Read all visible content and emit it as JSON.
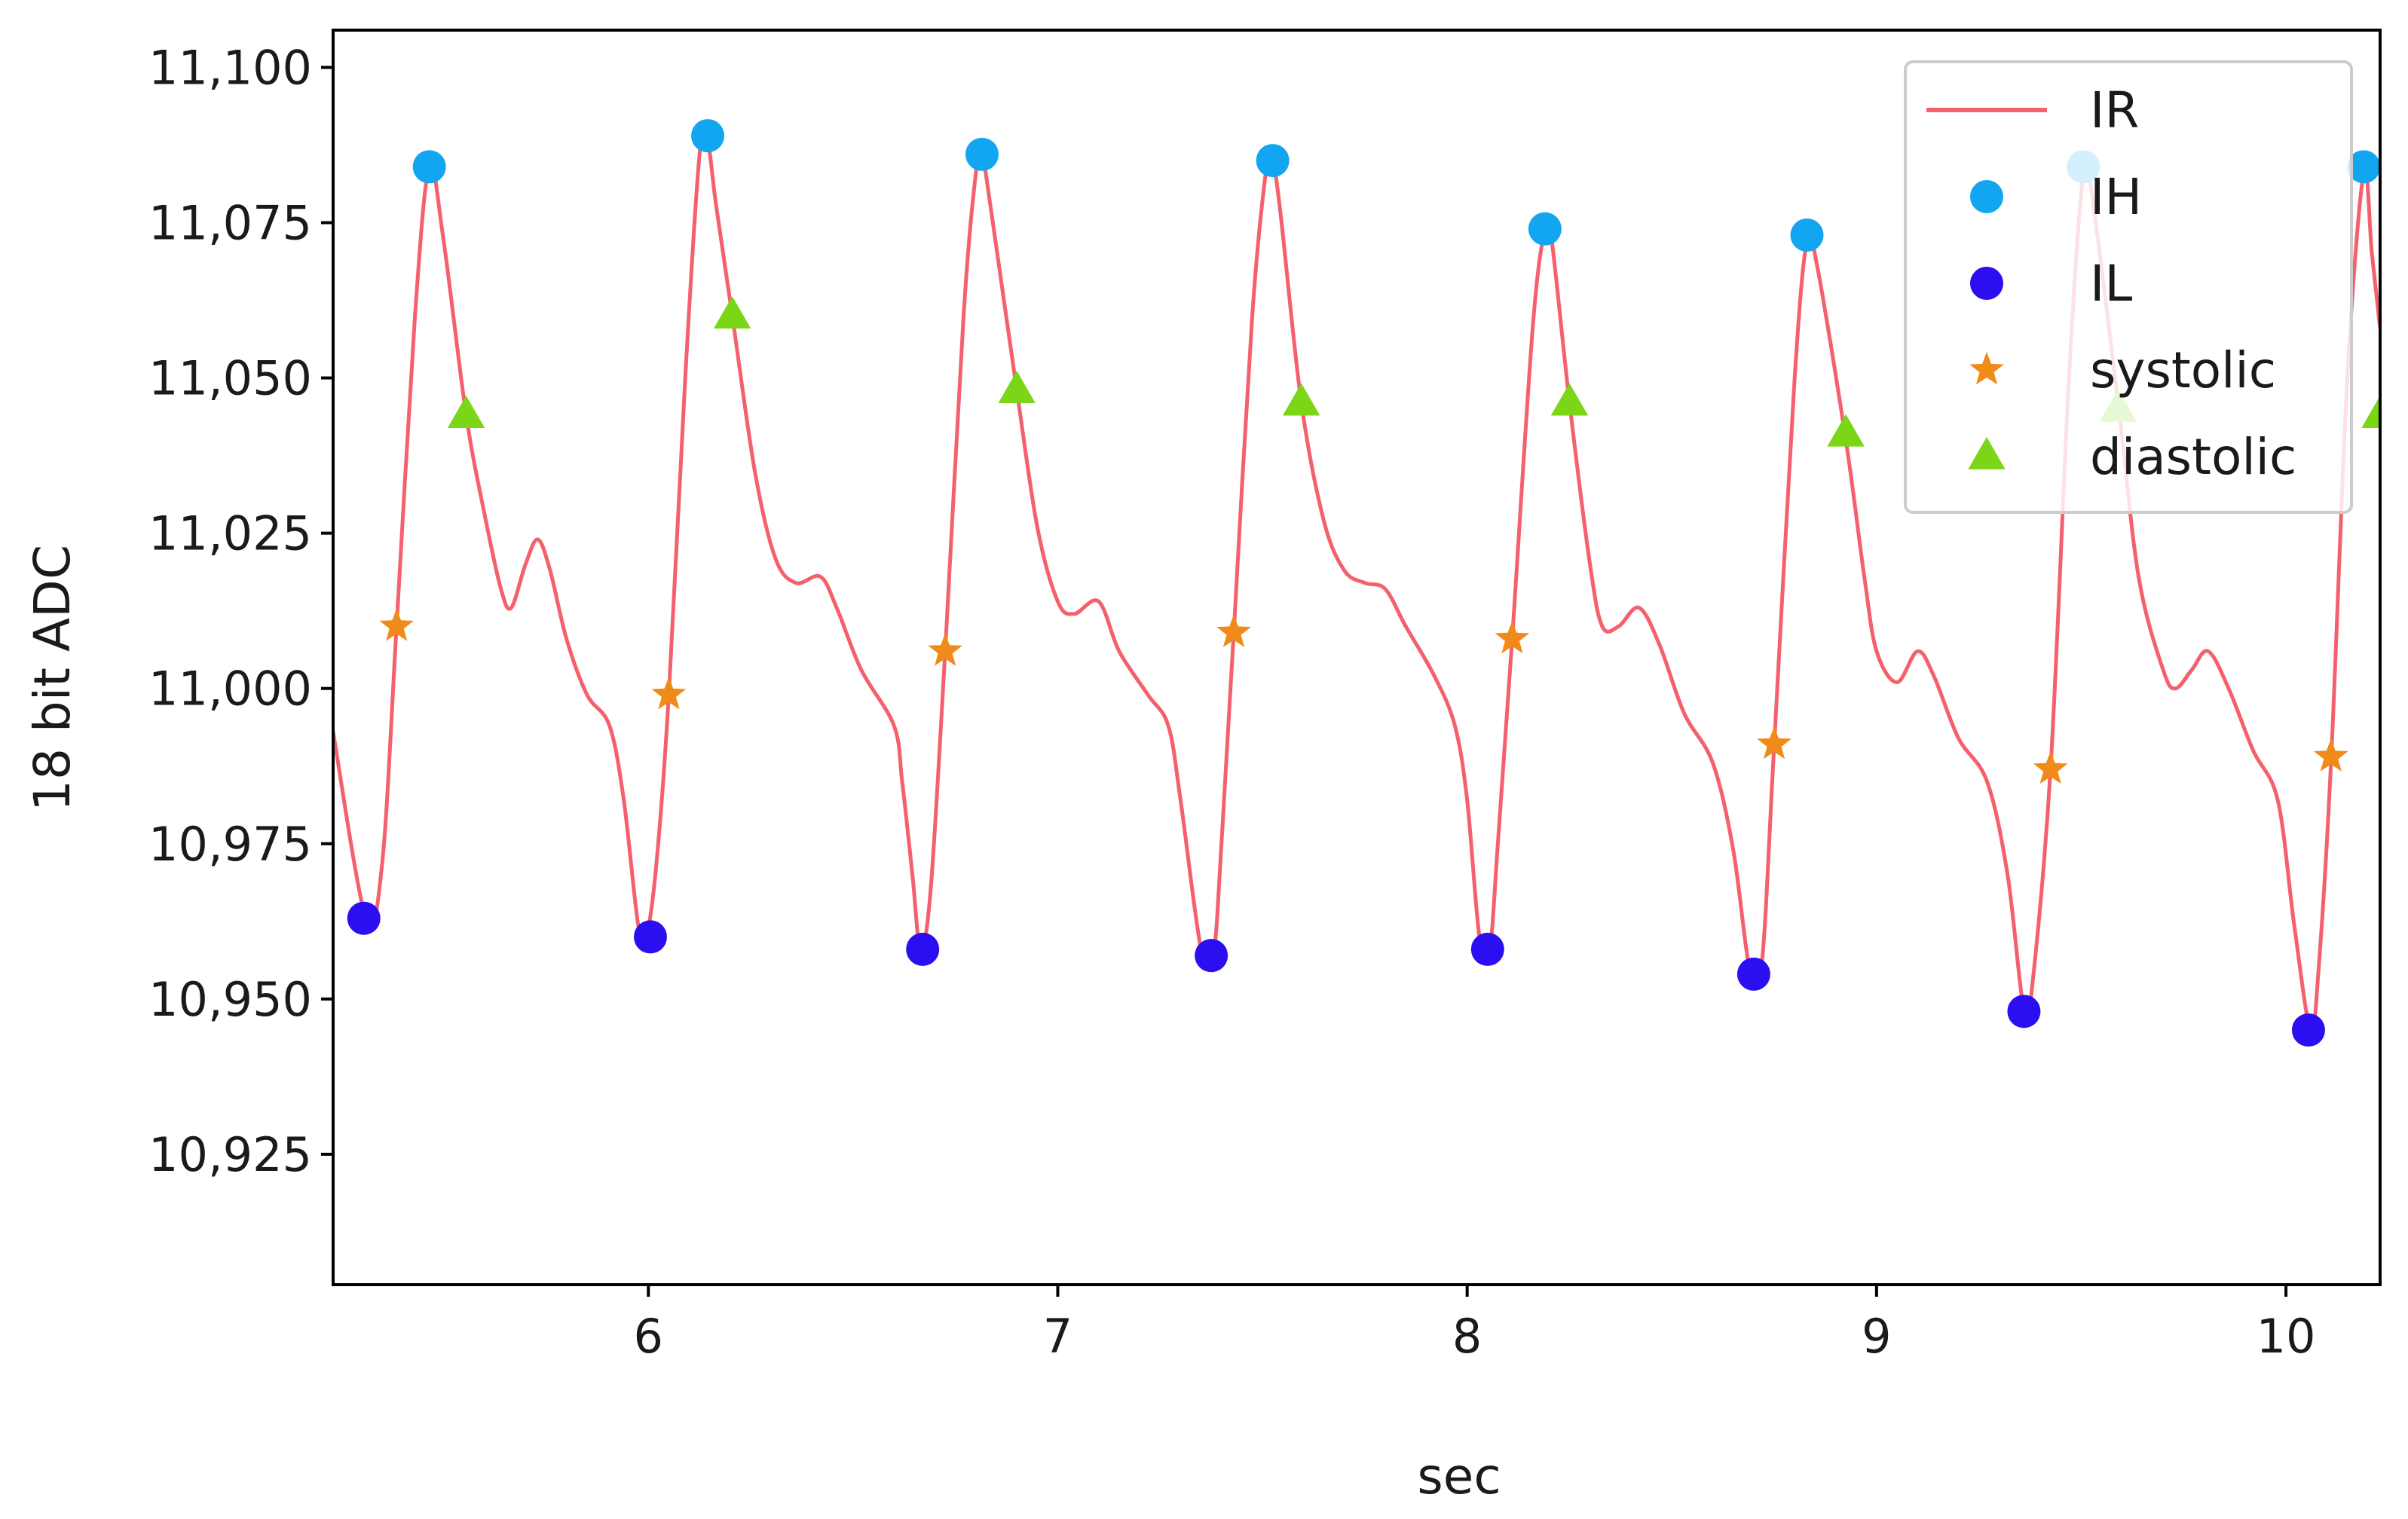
{
  "chart_data": {
    "type": "line",
    "title": "",
    "xlabel": "sec",
    "ylabel": "18 bit ADC",
    "xlim": [
      5.23,
      10.23
    ],
    "ylim": [
      10904,
      11106
    ],
    "grid": false,
    "legend_position": "top-right",
    "x_ticks": [
      6,
      7,
      8,
      9,
      10
    ],
    "x_tick_labels": [
      "6",
      "7",
      "8",
      "9",
      "10"
    ],
    "y_ticks": [
      10925,
      10950,
      10975,
      11000,
      11025,
      11050,
      11075,
      11100
    ],
    "y_tick_labels": [
      "10,925",
      "10,950",
      "10,975",
      "11,000",
      "11,025",
      "11,050",
      "11,075",
      "11,100"
    ],
    "colors": {
      "IR": "#f4606c",
      "IH": "#13a6f0",
      "IL": "#2b0ff0",
      "systolic": "#f08a18",
      "diastolic": "#7ad616"
    },
    "series": [
      {
        "name": "IR",
        "kind": "line",
        "points": [
          [
            5.23,
            10993
          ],
          [
            5.31,
            10963
          ],
          [
            5.35,
            10972
          ],
          [
            5.385,
            11010
          ],
          [
            5.43,
            11060
          ],
          [
            5.465,
            11084
          ],
          [
            5.5,
            11072
          ],
          [
            5.555,
            11044
          ],
          [
            5.6,
            11028
          ],
          [
            5.64,
            11016
          ],
          [
            5.665,
            11013
          ],
          [
            5.7,
            11020
          ],
          [
            5.73,
            11024
          ],
          [
            5.76,
            11019
          ],
          [
            5.8,
            11008
          ],
          [
            5.85,
            10999
          ],
          [
            5.905,
            10994
          ],
          [
            5.94,
            10982
          ],
          [
            5.975,
            10962
          ],
          [
            5.995,
            10960
          ],
          [
            6.02,
            10972
          ],
          [
            6.05,
            10999
          ],
          [
            6.09,
            11050
          ],
          [
            6.125,
            11086
          ],
          [
            6.145,
            11088
          ],
          [
            6.165,
            11078
          ],
          [
            6.205,
            11060
          ],
          [
            6.26,
            11035
          ],
          [
            6.31,
            11021
          ],
          [
            6.36,
            11017
          ],
          [
            6.42,
            11018
          ],
          [
            6.46,
            11013
          ],
          [
            6.52,
            11003
          ],
          [
            6.6,
            10994
          ],
          [
            6.62,
            10985
          ],
          [
            6.645,
            10970
          ],
          [
            6.665,
            10958
          ],
          [
            6.69,
            10968
          ],
          [
            6.725,
            11006
          ],
          [
            6.77,
            11060
          ],
          [
            6.8,
            11083
          ],
          [
            6.815,
            11086
          ],
          [
            6.835,
            11078
          ],
          [
            6.9,
            11048
          ],
          [
            6.95,
            11026
          ],
          [
            7.0,
            11014
          ],
          [
            7.04,
            11012
          ],
          [
            7.1,
            11014
          ],
          [
            7.15,
            11006
          ],
          [
            7.22,
            10999
          ],
          [
            7.27,
            10994
          ],
          [
            7.3,
            10982
          ],
          [
            7.35,
            10958
          ],
          [
            7.38,
            10957
          ],
          [
            7.4,
            10975
          ],
          [
            7.43,
            11009
          ],
          [
            7.475,
            11060
          ],
          [
            7.51,
            11084
          ],
          [
            7.525,
            11085
          ],
          [
            7.545,
            11076
          ],
          [
            7.595,
            11046
          ],
          [
            7.65,
            11027
          ],
          [
            7.7,
            11019
          ],
          [
            7.75,
            11017
          ],
          [
            7.8,
            11016
          ],
          [
            7.85,
            11010
          ],
          [
            7.92,
            11002
          ],
          [
            7.97,
            10994
          ],
          [
            8.0,
            10982
          ],
          [
            8.03,
            10960
          ],
          [
            8.055,
            10958
          ],
          [
            8.075,
            10975
          ],
          [
            8.11,
            11008
          ],
          [
            8.16,
            11058
          ],
          [
            8.19,
            11074
          ],
          [
            8.205,
            11073
          ],
          [
            8.25,
            11046
          ],
          [
            8.3,
            11020
          ],
          [
            8.33,
            11010
          ],
          [
            8.37,
            11010
          ],
          [
            8.42,
            11013
          ],
          [
            8.47,
            11007
          ],
          [
            8.53,
            10996
          ],
          [
            8.6,
            10988
          ],
          [
            8.65,
            10974
          ],
          [
            8.69,
            10955
          ],
          [
            8.72,
            10956
          ],
          [
            8.75,
            10991
          ],
          [
            8.8,
            11050
          ],
          [
            8.83,
            11072
          ],
          [
            8.855,
            11068
          ],
          [
            8.925,
            11040
          ],
          [
            8.97,
            11018
          ],
          [
            9.0,
            11006
          ],
          [
            9.05,
            11001
          ],
          [
            9.1,
            11006
          ],
          [
            9.14,
            11002
          ],
          [
            9.2,
            10992
          ],
          [
            9.27,
            10985
          ],
          [
            9.32,
            10970
          ],
          [
            9.36,
            10948
          ],
          [
            9.38,
            10952
          ],
          [
            9.425,
            10987
          ],
          [
            9.47,
            11050
          ],
          [
            9.505,
            11083
          ],
          [
            9.525,
            11080
          ],
          [
            9.59,
            11046
          ],
          [
            9.64,
            11018
          ],
          [
            9.7,
            11003
          ],
          [
            9.73,
            11000
          ],
          [
            9.77,
            11003
          ],
          [
            9.81,
            11006
          ],
          [
            9.86,
            11000
          ],
          [
            9.92,
            10990
          ],
          [
            9.98,
            10982
          ],
          [
            10.02,
            10962
          ],
          [
            10.06,
            10945
          ],
          [
            10.08,
            10955
          ],
          [
            10.11,
            10988
          ],
          [
            10.15,
            11050
          ],
          [
            10.19,
            11083
          ],
          [
            10.21,
            11070
          ],
          [
            10.23,
            11058
          ]
        ]
      },
      {
        "name": "IH",
        "kind": "markers",
        "marker": "circle",
        "points": [
          [
            5.465,
            11084
          ],
          [
            6.145,
            11089
          ],
          [
            6.815,
            11086
          ],
          [
            7.525,
            11085
          ],
          [
            8.19,
            11074
          ],
          [
            8.83,
            11073
          ],
          [
            9.505,
            11084
          ],
          [
            10.19,
            11084
          ]
        ]
      },
      {
        "name": "IL",
        "kind": "markers",
        "marker": "circle",
        "points": [
          [
            5.305,
            10963
          ],
          [
            6.005,
            10960
          ],
          [
            6.67,
            10958
          ],
          [
            7.375,
            10957
          ],
          [
            8.05,
            10958
          ],
          [
            8.7,
            10954
          ],
          [
            9.36,
            10948
          ],
          [
            10.055,
            10945
          ]
        ]
      },
      {
        "name": "systolic",
        "kind": "markers",
        "marker": "star",
        "points": [
          [
            5.385,
            11010
          ],
          [
            6.05,
            10999
          ],
          [
            6.725,
            11006
          ],
          [
            7.43,
            11009
          ],
          [
            8.11,
            11008
          ],
          [
            8.75,
            10991
          ],
          [
            9.425,
            10987
          ],
          [
            10.11,
            10989
          ]
        ]
      },
      {
        "name": "diastolic",
        "kind": "markers",
        "marker": "triangle",
        "points": [
          [
            5.555,
            11044
          ],
          [
            6.205,
            11060
          ],
          [
            6.9,
            11048
          ],
          [
            7.595,
            11046
          ],
          [
            8.25,
            11046
          ],
          [
            8.925,
            11041
          ],
          [
            9.59,
            11045
          ],
          [
            10.23,
            11044
          ]
        ]
      }
    ],
    "legend": [
      "IR",
      "IH",
      "IL",
      "systolic",
      "diastolic"
    ]
  }
}
